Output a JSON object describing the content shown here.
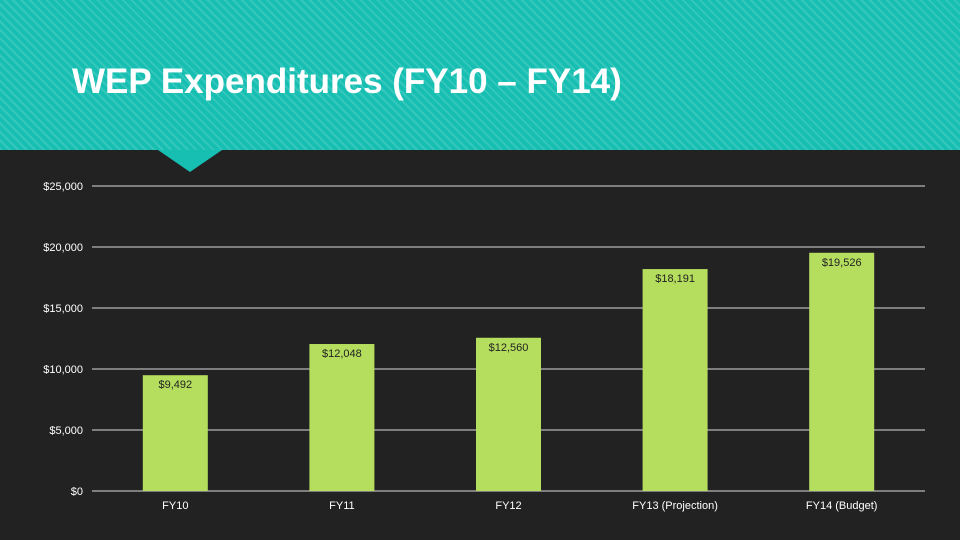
{
  "slide": {
    "title": "WEP Expenditures (FY10 – FY14)"
  },
  "colors": {
    "header_bg": "#17bfb2",
    "background": "#222222",
    "bar": "#b5de5f",
    "gridline": "#d9d9d9",
    "label_text": "#ffffff",
    "data_label_text": "#222222"
  },
  "chart_data": {
    "type": "bar",
    "title": "",
    "xlabel": "",
    "ylabel": "",
    "categories": [
      "FY10",
      "FY11",
      "FY12",
      "FY13 (Projection)",
      "FY14 (Budget)"
    ],
    "values": [
      9492,
      12048,
      12560,
      18191,
      19526
    ],
    "data_labels": [
      "$9,492",
      "$12,048",
      "$12,560",
      "$18,191",
      "$19,526"
    ],
    "y_ticks": [
      0,
      5000,
      10000,
      15000,
      20000,
      25000
    ],
    "y_tick_labels": [
      "$0",
      "$5,000",
      "$10,000",
      "$15,000",
      "$20,000",
      "$25,000"
    ],
    "ylim": [
      0,
      25000
    ],
    "grid": true,
    "legend": "none"
  }
}
